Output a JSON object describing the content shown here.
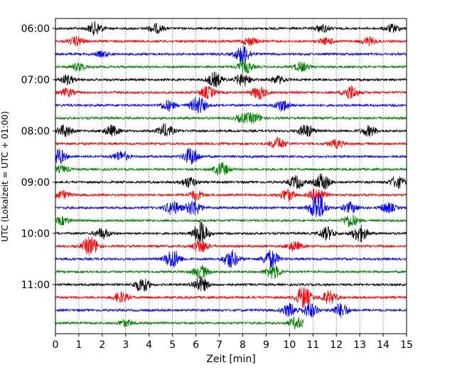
{
  "chart_data": {
    "type": "line",
    "title": "",
    "xlabel": "Zeit  [min]",
    "ylabel": "UTC (Lokalzeit = UTC + 01:00)",
    "xlim": [
      0,
      15
    ],
    "x_ticks": [
      0,
      1,
      2,
      3,
      4,
      5,
      6,
      7,
      8,
      9,
      10,
      11,
      12,
      13,
      14,
      15
    ],
    "y_tick_labels": [
      "06:00",
      "07:00",
      "08:00",
      "09:00",
      "10:00",
      "11:00"
    ],
    "row_interval_minutes": 15,
    "grid": "vertical dotted at each minute",
    "legend": "none",
    "colors": [
      "#000000",
      "#ff0000",
      "#0000ff",
      "#008000"
    ],
    "series": [
      {
        "start": "06:00",
        "color": "#000000",
        "events": [
          [
            1.7,
            0.5
          ],
          [
            4.3,
            0.35
          ],
          [
            11.4,
            0.3
          ],
          [
            14.4,
            0.3
          ]
        ]
      },
      {
        "start": "06:15",
        "color": "#ff0000",
        "events": [
          [
            0.9,
            0.35
          ],
          [
            8.3,
            0.3
          ],
          [
            11.6,
            0.25
          ],
          [
            13.4,
            0.3
          ]
        ]
      },
      {
        "start": "06:30",
        "color": "#0000ff",
        "events": [
          [
            8.0,
            0.7
          ],
          [
            2.0,
            0.2
          ]
        ]
      },
      {
        "start": "06:45",
        "color": "#008000",
        "events": [
          [
            1.0,
            0.3
          ],
          [
            8.1,
            0.5
          ],
          [
            10.5,
            0.35
          ]
        ]
      },
      {
        "start": "07:00",
        "color": "#000000",
        "events": [
          [
            0.5,
            0.35
          ],
          [
            6.8,
            0.55
          ],
          [
            8.0,
            0.5
          ],
          [
            9.5,
            0.3
          ]
        ]
      },
      {
        "start": "07:15",
        "color": "#ff0000",
        "events": [
          [
            0.5,
            0.3
          ],
          [
            6.5,
            0.45
          ],
          [
            8.7,
            0.5
          ],
          [
            12.6,
            0.55
          ]
        ]
      },
      {
        "start": "07:30",
        "color": "#0000ff",
        "events": [
          [
            4.8,
            0.4
          ],
          [
            6.1,
            0.7
          ],
          [
            9.7,
            0.45
          ]
        ]
      },
      {
        "start": "07:45",
        "color": "#008000",
        "events": [
          [
            8.0,
            0.3
          ],
          [
            8.5,
            0.35
          ]
        ]
      },
      {
        "start": "08:00",
        "color": "#000000",
        "events": [
          [
            0.4,
            0.45
          ],
          [
            2.4,
            0.4
          ],
          [
            4.7,
            0.5
          ],
          [
            10.7,
            0.5
          ],
          [
            13.4,
            0.4
          ]
        ]
      },
      {
        "start": "08:15",
        "color": "#ff0000",
        "events": [
          [
            9.5,
            0.45
          ],
          [
            12.0,
            0.3
          ]
        ]
      },
      {
        "start": "08:30",
        "color": "#0000ff",
        "events": [
          [
            0.1,
            0.65
          ],
          [
            2.8,
            0.4
          ],
          [
            5.8,
            0.7
          ]
        ]
      },
      {
        "start": "08:45",
        "color": "#008000",
        "events": [
          [
            0.3,
            0.25
          ],
          [
            7.1,
            0.5
          ]
        ]
      },
      {
        "start": "09:00",
        "color": "#000000",
        "events": [
          [
            5.7,
            0.4
          ],
          [
            10.3,
            0.5
          ],
          [
            11.4,
            0.65
          ],
          [
            14.6,
            0.45
          ]
        ]
      },
      {
        "start": "09:15",
        "color": "#ff0000",
        "events": [
          [
            0.3,
            0.3
          ],
          [
            6.0,
            0.35
          ],
          [
            9.9,
            0.45
          ],
          [
            11.2,
            0.55
          ]
        ]
      },
      {
        "start": "09:30",
        "color": "#0000ff",
        "events": [
          [
            5.0,
            0.55
          ],
          [
            5.9,
            0.65
          ],
          [
            11.2,
            1.2
          ],
          [
            12.6,
            0.4
          ],
          [
            14.2,
            0.4
          ]
        ]
      },
      {
        "start": "09:45",
        "color": "#008000",
        "events": [
          [
            0.3,
            0.3
          ],
          [
            12.6,
            0.5
          ]
        ]
      },
      {
        "start": "10:00",
        "color": "#000000",
        "events": [
          [
            2.0,
            0.4
          ],
          [
            11.6,
            0.5
          ],
          [
            13.0,
            0.65
          ],
          [
            6.2,
            0.9
          ]
        ]
      },
      {
        "start": "10:15",
        "color": "#ff0000",
        "events": [
          [
            1.5,
            0.75
          ],
          [
            6.2,
            0.5
          ],
          [
            10.2,
            0.35
          ]
        ]
      },
      {
        "start": "10:30",
        "color": "#0000ff",
        "events": [
          [
            5.0,
            0.75
          ],
          [
            7.5,
            0.7
          ],
          [
            9.2,
            0.7
          ]
        ]
      },
      {
        "start": "10:45",
        "color": "#008000",
        "events": [
          [
            6.2,
            0.5
          ],
          [
            9.3,
            0.55
          ]
        ]
      },
      {
        "start": "11:00",
        "color": "#000000",
        "events": [
          [
            3.7,
            0.55
          ],
          [
            6.2,
            0.6
          ]
        ]
      },
      {
        "start": "11:15",
        "color": "#ff0000",
        "events": [
          [
            2.8,
            0.4
          ],
          [
            10.6,
            0.85
          ],
          [
            11.7,
            0.5
          ]
        ]
      },
      {
        "start": "11:30",
        "color": "#0000ff",
        "events": [
          [
            10.0,
            0.5
          ],
          [
            10.9,
            0.55
          ],
          [
            12.2,
            0.55
          ]
        ]
      },
      {
        "start": "11:45",
        "color": "#008000",
        "events": [
          [
            3.0,
            0.25
          ],
          [
            10.3,
            0.45
          ]
        ],
        "end": 10.6
      }
    ]
  }
}
